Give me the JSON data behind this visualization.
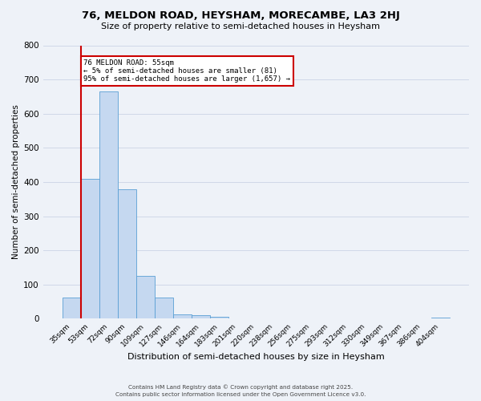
{
  "title": "76, MELDON ROAD, HEYSHAM, MORECAMBE, LA3 2HJ",
  "subtitle": "Size of property relative to semi-detached houses in Heysham",
  "xlabel": "Distribution of semi-detached houses by size in Heysham",
  "ylabel": "Number of semi-detached properties",
  "bin_labels": [
    "35sqm",
    "53sqm",
    "72sqm",
    "90sqm",
    "109sqm",
    "127sqm",
    "146sqm",
    "164sqm",
    "183sqm",
    "201sqm",
    "220sqm",
    "238sqm",
    "256sqm",
    "275sqm",
    "293sqm",
    "312sqm",
    "330sqm",
    "349sqm",
    "367sqm",
    "386sqm",
    "404sqm"
  ],
  "bar_heights": [
    63,
    410,
    665,
    380,
    125,
    62,
    14,
    11,
    5,
    0,
    0,
    0,
    0,
    0,
    0,
    0,
    0,
    0,
    0,
    0,
    3
  ],
  "bar_color": "#c5d8f0",
  "bar_edge_color": "#5a9fd4",
  "grid_color": "#d0d8e8",
  "background_color": "#eef2f8",
  "ylim": [
    0,
    800
  ],
  "yticks": [
    0,
    100,
    200,
    300,
    400,
    500,
    600,
    700,
    800
  ],
  "property_line_x": 1,
  "property_line_color": "#cc0000",
  "annotation_text": "76 MELDON ROAD: 55sqm\n← 5% of semi-detached houses are smaller (81)\n95% of semi-detached houses are larger (1,657) →",
  "annotation_box_color": "#cc0000",
  "footer_line1": "Contains HM Land Registry data © Crown copyright and database right 2025.",
  "footer_line2": "Contains public sector information licensed under the Open Government Licence v3.0."
}
